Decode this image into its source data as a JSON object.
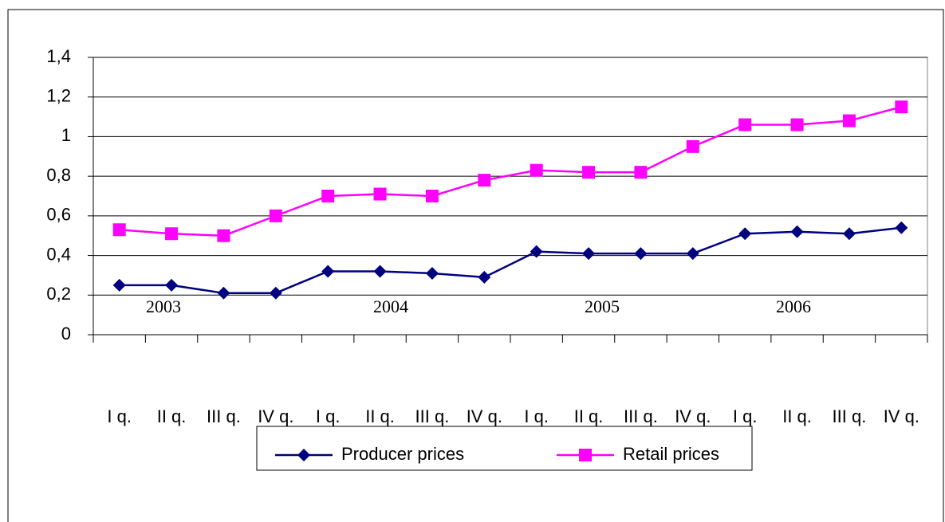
{
  "chart_data": {
    "type": "line",
    "categories": [
      "I q.",
      "II q.",
      "III q.",
      "IV q.",
      "I q.",
      "II q.",
      "III q.",
      "IV q.",
      "I q.",
      "II q.",
      "III q.",
      "IV q.",
      "I q.",
      "II q.",
      "III q.",
      "IV q."
    ],
    "annotations": [
      "2003",
      "2004",
      "2005",
      "2006"
    ],
    "series": [
      {
        "name": "Producer prices",
        "color": "#000080",
        "marker": "diamond",
        "values": [
          0.25,
          0.25,
          0.21,
          0.21,
          0.32,
          0.32,
          0.31,
          0.29,
          0.42,
          0.41,
          0.41,
          0.41,
          0.51,
          0.52,
          0.51,
          0.54
        ]
      },
      {
        "name": "Retail prices",
        "color": "#ff00ff",
        "marker": "square",
        "values": [
          0.53,
          0.51,
          0.5,
          0.6,
          0.7,
          0.71,
          0.7,
          0.78,
          0.83,
          0.82,
          0.82,
          0.95,
          1.06,
          1.06,
          1.08,
          1.15
        ]
      }
    ],
    "ylim": [
      0,
      1.4
    ],
    "yticks": [
      0,
      {
        "value": 0.2,
        "label": "0,2"
      },
      {
        "value": 0.4,
        "label": "0,4"
      },
      {
        "value": 0.6,
        "label": "0,6"
      },
      {
        "value": 0.8,
        "label": "0,8"
      },
      1,
      {
        "value": 1.2,
        "label": "1,2"
      },
      {
        "value": 1.4,
        "label": "1,4"
      }
    ],
    "grid": true,
    "legend": "bottom"
  }
}
